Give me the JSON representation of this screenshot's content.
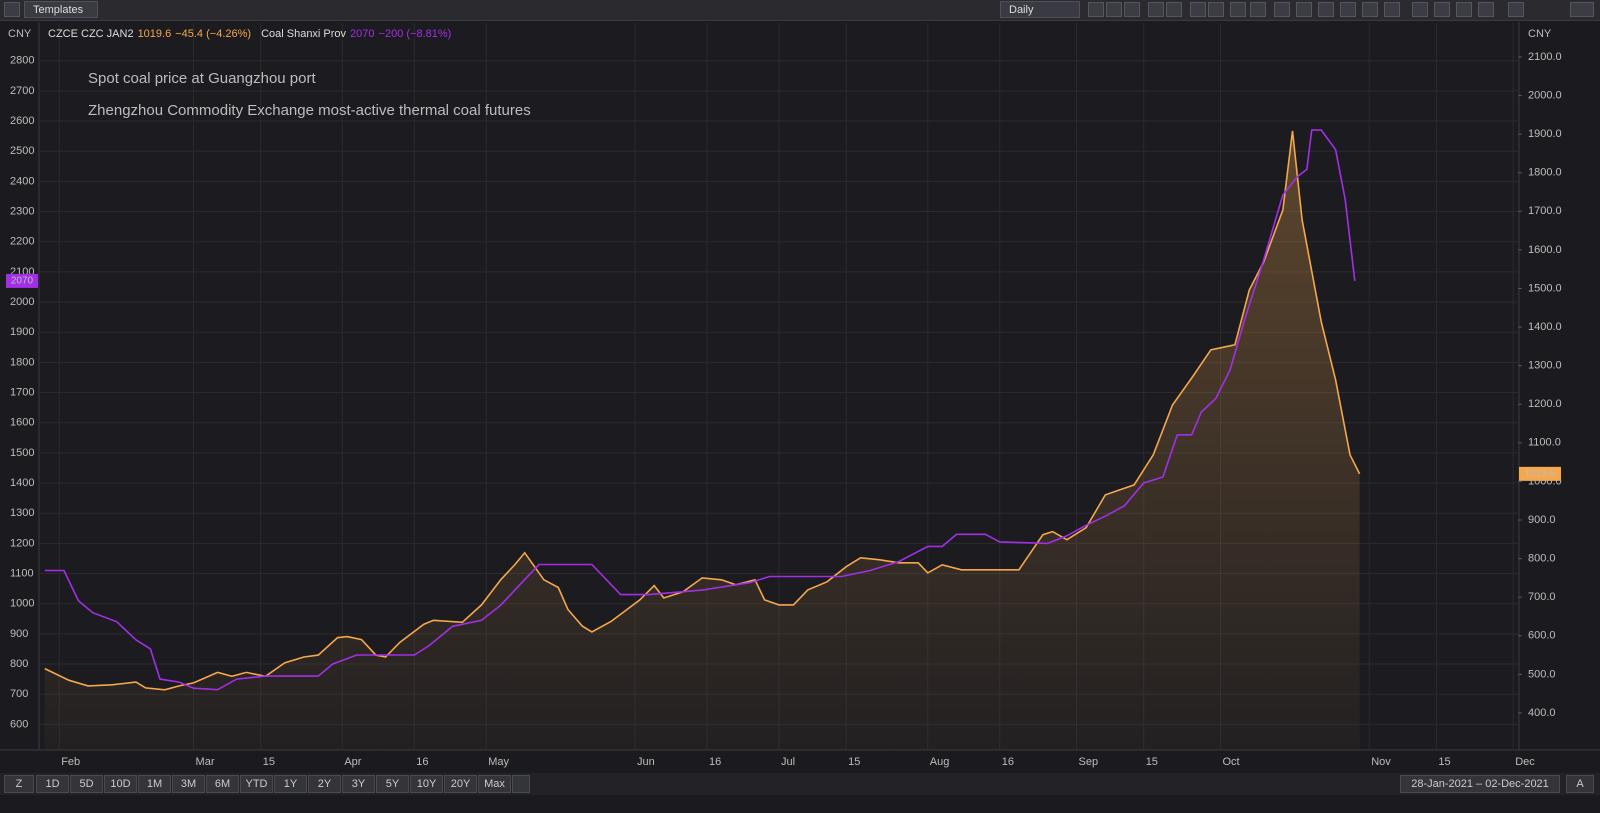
{
  "toolbar": {
    "templates": "Templates",
    "interval": "Daily",
    "currency_left": "CNY",
    "currency_right": "CNY"
  },
  "chart_data": {
    "type": "line",
    "annotations": [
      {
        "text": "Spot coal price at Guangzhou port",
        "color": "#7d55e6"
      },
      {
        "text": "Zhengzhou Commodity Exchange most-active thermal coal futures",
        "color": "#f0a232"
      }
    ],
    "series": [
      {
        "name": "CZCE CZC JAN2",
        "change_label": "−45.4 (−4.26%)",
        "color": "#f5a74c",
        "axis": "y2",
        "fill_area": true,
        "x": [
          "2021-01-29",
          "2021-02-03",
          "2021-02-07",
          "2021-02-12",
          "2021-02-17",
          "2021-02-19",
          "2021-02-23",
          "2021-02-26",
          "2021-03-01",
          "2021-03-06",
          "2021-03-09",
          "2021-03-12",
          "2021-03-16",
          "2021-03-20",
          "2021-03-24",
          "2021-03-27",
          "2021-03-31",
          "2021-04-02",
          "2021-04-05",
          "2021-04-08",
          "2021-04-10",
          "2021-04-13",
          "2021-04-18",
          "2021-04-20",
          "2021-04-26",
          "2021-04-30",
          "2021-05-04",
          "2021-05-07",
          "2021-05-09",
          "2021-05-13",
          "2021-05-16",
          "2021-05-18",
          "2021-05-21",
          "2021-05-23",
          "2021-05-27",
          "2021-06-02",
          "2021-06-05",
          "2021-06-07",
          "2021-06-11",
          "2021-06-15",
          "2021-06-19",
          "2021-06-22",
          "2021-06-26",
          "2021-06-28",
          "2021-07-01",
          "2021-07-04",
          "2021-07-07",
          "2021-07-11",
          "2021-07-15",
          "2021-07-18",
          "2021-07-22",
          "2021-07-26",
          "2021-07-30",
          "2021-08-01",
          "2021-08-04",
          "2021-08-08",
          "2021-08-16",
          "2021-08-20",
          "2021-08-25",
          "2021-08-27",
          "2021-08-30",
          "2021-09-03",
          "2021-09-07",
          "2021-09-10",
          "2021-09-13",
          "2021-09-17",
          "2021-09-21",
          "2021-09-25",
          "2021-09-29",
          "2021-10-04",
          "2021-10-07",
          "2021-10-10",
          "2021-10-14",
          "2021-10-16",
          "2021-10-18",
          "2021-10-22",
          "2021-10-25",
          "2021-10-28",
          "2021-10-30"
        ],
        "values": [
          515,
          485,
          470,
          473,
          480,
          465,
          460,
          470,
          478,
          505,
          495,
          505,
          495,
          530,
          545,
          550,
          595,
          598,
          590,
          550,
          545,
          583,
          630,
          640,
          635,
          680,
          745,
          785,
          815,
          745,
          725,
          668,
          625,
          610,
          637,
          693,
          730,
          698,
          714,
          750,
          745,
          732,
          745,
          693,
          680,
          680,
          719,
          740,
          779,
          802,
          797,
          789,
          789,
          763,
          784,
          771,
          771,
          771,
          862,
          870,
          849,
          880,
          965,
          978,
          991,
          1069,
          1198,
          1268,
          1341,
          1354,
          1496,
          1569,
          1704,
          1908,
          1678,
          1413,
          1263,
          1069,
          1019.6
        ]
      },
      {
        "name": "Coal Shanxi Prov",
        "change_label": "−200 (−8.81%)",
        "color": "#a22fe6",
        "axis": "y",
        "x": [
          "2021-01-29",
          "2021-02-02",
          "2021-02-05",
          "2021-02-08",
          "2021-02-13",
          "2021-02-17",
          "2021-02-20",
          "2021-02-22",
          "2021-02-26",
          "2021-03-01",
          "2021-03-06",
          "2021-03-10",
          "2021-03-13",
          "2021-03-16",
          "2021-03-27",
          "2021-03-30",
          "2021-04-04",
          "2021-04-13",
          "2021-04-16",
          "2021-04-19",
          "2021-04-24",
          "2021-04-30",
          "2021-05-04",
          "2021-05-09",
          "2021-05-12",
          "2021-05-23",
          "2021-05-29",
          "2021-06-04",
          "2021-06-15",
          "2021-06-25",
          "2021-06-29",
          "2021-07-14",
          "2021-07-20",
          "2021-07-26",
          "2021-08-01",
          "2021-08-04",
          "2021-08-07",
          "2021-08-13",
          "2021-08-16",
          "2021-08-26",
          "2021-08-30",
          "2021-09-03",
          "2021-09-07",
          "2021-09-11",
          "2021-09-15",
          "2021-09-19",
          "2021-09-22",
          "2021-09-25",
          "2021-09-27",
          "2021-09-30",
          "2021-10-03",
          "2021-10-06",
          "2021-10-10",
          "2021-10-14",
          "2021-10-17",
          "2021-10-19",
          "2021-10-20",
          "2021-10-22",
          "2021-10-25",
          "2021-10-27",
          "2021-10-29"
        ],
        "values": [
          1110,
          1110,
          1010,
          970,
          940,
          880,
          850,
          750,
          740,
          720,
          715,
          750,
          755,
          760,
          760,
          800,
          830,
          830,
          830,
          860,
          925,
          945,
          995,
          1080,
          1130,
          1130,
          1030,
          1030,
          1045,
          1070,
          1090,
          1090,
          1110,
          1140,
          1190,
          1190,
          1230,
          1230,
          1205,
          1200,
          1225,
          1260,
          1290,
          1325,
          1400,
          1420,
          1560,
          1560,
          1635,
          1680,
          1775,
          1940,
          2140,
          2355,
          2415,
          2440,
          2570,
          2570,
          2505,
          2340,
          2070
        ]
      }
    ],
    "xlim": [
      "2021-01-28",
      "2021-12-02"
    ],
    "xticks": [
      {
        "value": "2021-02-01",
        "label": "Feb"
      },
      {
        "value": "2021-03-01",
        "label": "Mar"
      },
      {
        "value": "2021-03-15",
        "label": "15"
      },
      {
        "value": "2021-04-01",
        "label": "Apr"
      },
      {
        "value": "2021-04-16",
        "label": "16"
      },
      {
        "value": "2021-05-01",
        "label": "May"
      },
      {
        "value": "2021-06-01",
        "label": "Jun"
      },
      {
        "value": "2021-06-16",
        "label": "16"
      },
      {
        "value": "2021-07-01",
        "label": "Jul"
      },
      {
        "value": "2021-07-15",
        "label": "15"
      },
      {
        "value": "2021-08-01",
        "label": "Aug"
      },
      {
        "value": "2021-08-16",
        "label": "16"
      },
      {
        "value": "2021-09-01",
        "label": "Sep"
      },
      {
        "value": "2021-09-15",
        "label": "15"
      },
      {
        "value": "2021-10-01",
        "label": "Oct"
      },
      {
        "value": "2021-11-01",
        "label": "Nov"
      },
      {
        "value": "2021-11-15",
        "label": "15"
      },
      {
        "value": "2021-12-01",
        "label": "Dec"
      }
    ],
    "ylim": [
      515,
      2925
    ],
    "yticks": [
      600,
      700,
      800,
      900,
      1000,
      1100,
      1200,
      1300,
      1400,
      1500,
      1600,
      1700,
      1800,
      1900,
      2000,
      2100,
      2200,
      2300,
      2400,
      2500,
      2600,
      2700,
      2800
    ],
    "y2lim": [
      304,
      2188
    ],
    "y2ticks": [
      {
        "value": 400,
        "label": "400.0"
      },
      {
        "value": 500,
        "label": "500.0"
      },
      {
        "value": 600,
        "label": "600.0"
      },
      {
        "value": 700,
        "label": "700.0"
      },
      {
        "value": 800,
        "label": "800.0"
      },
      {
        "value": 900,
        "label": "900.0"
      },
      {
        "value": 1000,
        "label": "1000.0"
      },
      {
        "value": 1100,
        "label": "1100.0"
      },
      {
        "value": 1200,
        "label": "1200.0"
      },
      {
        "value": 1300,
        "label": "1300.0"
      },
      {
        "value": 1400,
        "label": "1400.0"
      },
      {
        "value": 1500,
        "label": "1500.0"
      },
      {
        "value": 1600,
        "label": "1600.0"
      },
      {
        "value": 1700,
        "label": "1700.0"
      },
      {
        "value": 1800,
        "label": "1800.0"
      },
      {
        "value": 1900,
        "label": "1900.0"
      },
      {
        "value": 2000,
        "label": "2000.0"
      },
      {
        "value": 2100,
        "label": "2100.0"
      }
    ],
    "grid": true
  },
  "range_bar": {
    "zoom": "Z",
    "auto": "A",
    "ranges": [
      "1D",
      "5D",
      "10D",
      "1M",
      "3M",
      "6M",
      "YTD",
      "1Y",
      "2Y",
      "3Y",
      "5Y",
      "10Y",
      "20Y",
      "Max"
    ],
    "date_range": "28-Jan-2021  –  02-Dec-2021"
  }
}
